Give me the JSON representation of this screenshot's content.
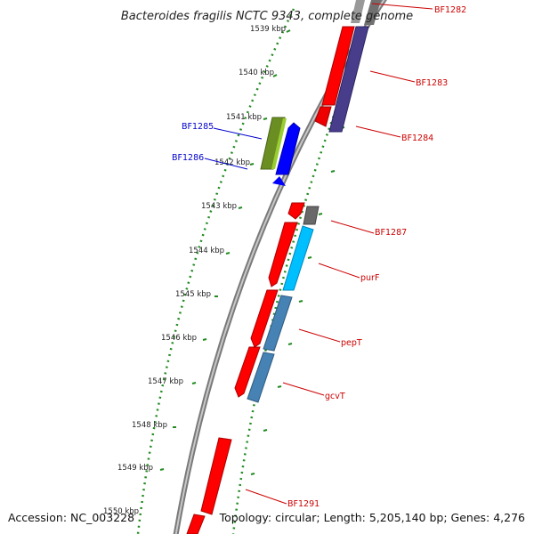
{
  "map": {
    "title": "Bacteroides fragilis NCTC 9343, complete genome",
    "accession": "Accession: NC_003228",
    "topology": "Topology: circular; Length: 5,205,140 bp; Genes: 4,276"
  },
  "ticks": [
    {
      "label": "1539 kbp"
    },
    {
      "label": "1540 kbp"
    },
    {
      "label": "1541 kbp"
    },
    {
      "label": "1542 kbp"
    },
    {
      "label": "1543 kbp"
    },
    {
      "label": "1544 kbp"
    },
    {
      "label": "1545 kbp"
    },
    {
      "label": "1546 kbp"
    },
    {
      "label": "1547 kbp"
    },
    {
      "label": "1548 kbp"
    },
    {
      "label": "1549 kbp"
    },
    {
      "label": "1550 kbp"
    }
  ],
  "gene_labels": [
    {
      "name": "BF1282",
      "color": "#cc0000"
    },
    {
      "name": "BF1283",
      "color": "#cc0000"
    },
    {
      "name": "BF1284",
      "color": "#cc0000"
    },
    {
      "name": "BF1285",
      "color": "#0000cc"
    },
    {
      "name": "BF1286",
      "color": "#0000cc"
    },
    {
      "name": "BF1287",
      "color": "#cc0000"
    },
    {
      "name": "purF",
      "color": "#cc0000"
    },
    {
      "name": "pepT",
      "color": "#cc0000"
    },
    {
      "name": "gcvT",
      "color": "#cc0000"
    },
    {
      "name": "BF1291",
      "color": "#cc0000"
    }
  ],
  "colors": {
    "cds": "#ff0000",
    "reverse_cds": "#0000ff",
    "orf": "#6b8e23",
    "rna": "#696969",
    "cyan": "#00bfff",
    "steel": "#4682b4",
    "purple": "#483d8b",
    "tick": "#228b22",
    "backbone": "#808080"
  }
}
